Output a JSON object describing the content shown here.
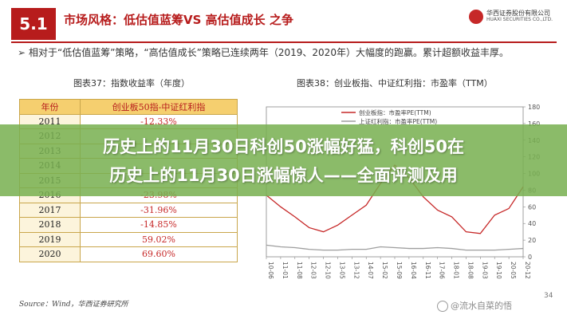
{
  "header": {
    "section_number": "5.1",
    "title": "市场风格：低估值蓝筹VS 高估值成长 之争",
    "logo_cn": "华西证券股份有限公司",
    "logo_en": "HUAXI SECURITIES CO.,LTD."
  },
  "bullet": {
    "mark": "➢",
    "text": "相对于“低估值蓝筹”策略，“高估值成长”策略已连续两年（2019、2020年）大幅度的跑赢。累计超额收益丰厚。"
  },
  "figures": {
    "left_caption": "图表37：指数收益率（年度）",
    "right_caption": "图表38：创业板指、中证红利指：市盈率（TTM）"
  },
  "table": {
    "headers": [
      "年份",
      "创业板50指-中证红利指"
    ],
    "rows": [
      {
        "year": "2011",
        "value": "-12.33%"
      },
      {
        "year": "2012",
        "value": ""
      },
      {
        "year": "2013",
        "value": ""
      },
      {
        "year": "2014",
        "value": ""
      },
      {
        "year": "2015",
        "value": ""
      },
      {
        "year": "2016",
        "value": "-23.98%"
      },
      {
        "year": "2017",
        "value": "-31.96%"
      },
      {
        "year": "2018",
        "value": "-14.85%"
      },
      {
        "year": "2019",
        "value": "59.02%"
      },
      {
        "year": "2020",
        "value": "69.60%"
      }
    ]
  },
  "chart_data": {
    "type": "line",
    "title": "",
    "series": [
      {
        "name": "创业板指：市盈率PE(TTM)",
        "color": "#c62828"
      },
      {
        "name": "上证红利指：市盈率PE(TTM)",
        "color": "#9e9e9e"
      }
    ],
    "x": [
      "10-06",
      "11-01",
      "11-08",
      "12-03",
      "12-10",
      "13-05",
      "13-12",
      "14-07",
      "15-02",
      "15-09",
      "16-04",
      "16-11",
      "17-06",
      "18-01",
      "18-08",
      "19-03",
      "19-10",
      "20-05",
      "20-12"
    ],
    "y_ticks": [
      "180",
      "160",
      "140",
      "120",
      "100",
      "80",
      "60",
      "40",
      "20",
      "0"
    ],
    "ylim": [
      0,
      180
    ],
    "values_red": [
      74,
      60,
      48,
      35,
      30,
      38,
      50,
      62,
      88,
      110,
      95,
      72,
      56,
      48,
      30,
      28,
      50,
      58,
      84
    ],
    "values_grey": [
      14,
      12,
      11,
      9,
      8,
      8,
      9,
      9,
      12,
      11,
      10,
      10,
      11,
      10,
      8,
      8,
      8,
      9,
      10
    ]
  },
  "footer": {
    "source": "Source：Wind，华西证券研究所",
    "page": "34",
    "watermark": "@流水自菜的悟",
    "watermark_icon": "weibo-logo-icon"
  },
  "banner": {
    "line1": "历史上的11月30日科创50涨幅好猛，科创50在",
    "line2": "历史上的11月30日涨幅惊人——全面评测及用"
  }
}
